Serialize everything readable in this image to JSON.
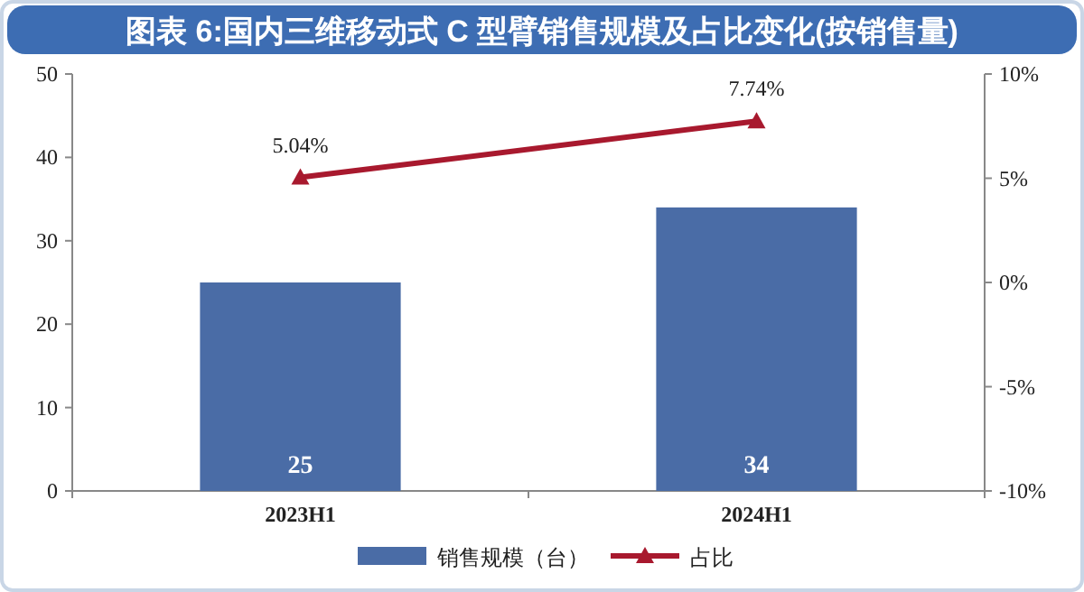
{
  "chart_data": {
    "type": "bar",
    "title": "图表 6:国内三维移动式 C 型臂销售规模及占比变化(按销售量)",
    "categories": [
      "2023H1",
      "2024H1"
    ],
    "series": [
      {
        "name": "销售规模（台）",
        "color": "#4a6ca6",
        "values": [
          25,
          34
        ],
        "value_labels": [
          "25",
          "34"
        ]
      },
      {
        "name": "占比",
        "type": "line",
        "axis": "y2",
        "color": "#a8192e",
        "values": [
          5.04,
          7.74
        ],
        "value_labels": [
          "5.04%",
          "7.74%"
        ],
        "marker": "triangle"
      }
    ],
    "ylim": [
      0,
      50
    ],
    "yticks": [
      0,
      10,
      20,
      30,
      40,
      50
    ],
    "y2lim": [
      -10,
      10
    ],
    "y2ticks": [
      {
        "value": -10,
        "label": "-10%"
      },
      {
        "value": -5,
        "label": "-5%"
      },
      {
        "value": 0,
        "label": "0%"
      },
      {
        "value": 5,
        "label": "5%"
      },
      {
        "value": 10,
        "label": "10%"
      }
    ],
    "grid": false,
    "legend": "bottom"
  }
}
